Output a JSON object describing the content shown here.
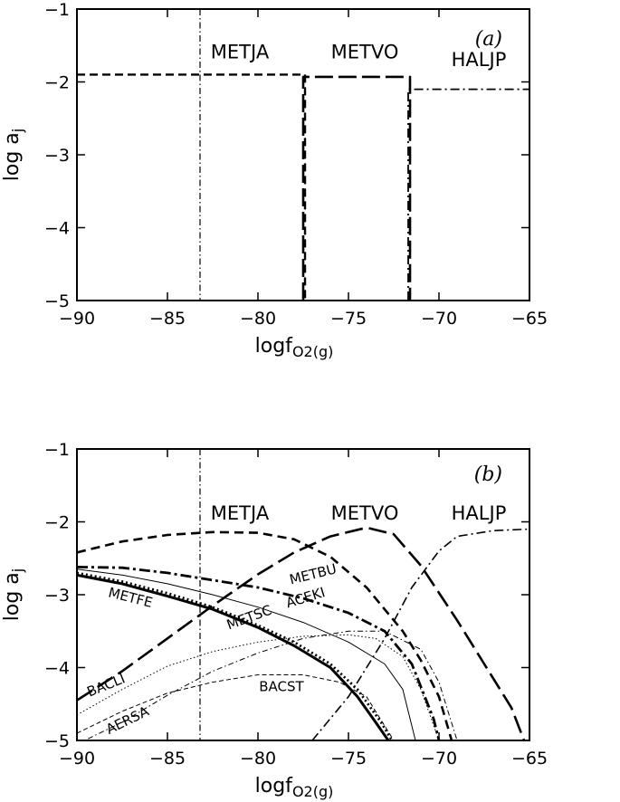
{
  "chart_data": [
    {
      "type": "line",
      "panel_label": "(a)",
      "xlabel": "logf",
      "xlabel_sub": "O2(g)",
      "ylabel": "log a",
      "ylabel_sub": "j",
      "xlim": [
        -90,
        -65
      ],
      "ylim": [
        -5,
        -1
      ],
      "xticks": [
        -90,
        -85,
        -80,
        -75,
        -70,
        -65
      ],
      "yticks": [
        -5,
        -4,
        -3,
        -2,
        -1
      ],
      "tick_labels_x": [
        "−90",
        "−85",
        "−80",
        "−75",
        "−70",
        "−65"
      ],
      "tick_labels_y": [
        "−5",
        "−4",
        "−3",
        "−2",
        "−1"
      ],
      "reference_line": {
        "x": -83.2
      },
      "series": [
        {
          "name": "METJA",
          "label_at": [
            -81,
            -1.68
          ],
          "points": [
            [
              -90,
              -1.9
            ],
            [
              -77.4,
              -1.9
            ],
            [
              -77.4,
              -5
            ]
          ]
        },
        {
          "name": "METVO",
          "label_at": [
            -74.1,
            -1.68
          ],
          "points": [
            [
              -77.5,
              -5
            ],
            [
              -77.5,
              -1.93
            ],
            [
              -71.6,
              -1.93
            ],
            [
              -71.6,
              -5
            ]
          ]
        },
        {
          "name": "HALJP",
          "label_at": [
            -67.8,
            -1.78
          ],
          "points": [
            [
              -71.7,
              -5
            ],
            [
              -71.7,
              -2.1
            ],
            [
              -65,
              -2.1
            ]
          ]
        }
      ]
    },
    {
      "type": "line",
      "panel_label": "(b)",
      "xlabel": "logf",
      "xlabel_sub": "O2(g)",
      "ylabel": "log a",
      "ylabel_sub": "j",
      "xlim": [
        -90,
        -65
      ],
      "ylim": [
        -5,
        -1
      ],
      "xticks": [
        -90,
        -85,
        -80,
        -75,
        -70,
        -65
      ],
      "yticks": [
        -5,
        -4,
        -3,
        -2,
        -1
      ],
      "tick_labels_x": [
        "−90",
        "−85",
        "−80",
        "−75",
        "−70",
        "−65"
      ],
      "tick_labels_y": [
        "−5",
        "−4",
        "−3",
        "−2",
        "−1"
      ],
      "reference_line": {
        "x": -83.2
      },
      "series": [
        {
          "name": "METJA",
          "label_at": [
            -81,
            -1.97
          ],
          "points": [
            [
              -90,
              -2.42
            ],
            [
              -87.5,
              -2.27
            ],
            [
              -85,
              -2.18
            ],
            [
              -82.5,
              -2.14
            ],
            [
              -80,
              -2.15
            ],
            [
              -78,
              -2.24
            ],
            [
              -76,
              -2.48
            ],
            [
              -74,
              -2.9
            ],
            [
              -72,
              -3.5
            ],
            [
              -71,
              -3.9
            ],
            [
              -70,
              -4.4
            ],
            [
              -69.3,
              -5
            ]
          ]
        },
        {
          "name": "METVO",
          "label_at": [
            -74.1,
            -1.97
          ],
          "points": [
            [
              -90,
              -4.45
            ],
            [
              -87.5,
              -4.05
            ],
            [
              -85,
              -3.6
            ],
            [
              -82.5,
              -3.15
            ],
            [
              -80,
              -2.72
            ],
            [
              -78,
              -2.42
            ],
            [
              -76,
              -2.2
            ],
            [
              -74,
              -2.08
            ],
            [
              -72.5,
              -2.17
            ],
            [
              -71,
              -2.6
            ],
            [
              -69,
              -3.35
            ],
            [
              -67.5,
              -3.95
            ],
            [
              -66,
              -4.55
            ],
            [
              -65.3,
              -5
            ]
          ]
        },
        {
          "name": "HALJP",
          "label_at": [
            -67.8,
            -1.97
          ],
          "points": [
            [
              -77,
              -5
            ],
            [
              -75,
              -4.4
            ],
            [
              -73,
              -3.6
            ],
            [
              -71.5,
              -2.9
            ],
            [
              -70,
              -2.4
            ],
            [
              -69,
              -2.2
            ],
            [
              -67,
              -2.12
            ],
            [
              -65,
              -2.1
            ]
          ]
        },
        {
          "name": "METBU",
          "label_at": [
            -76.9,
            -2.78
          ],
          "points": [
            [
              -90,
              -2.62
            ],
            [
              -87.5,
              -2.63
            ],
            [
              -85,
              -2.7
            ],
            [
              -82.5,
              -2.8
            ],
            [
              -80,
              -2.9
            ],
            [
              -77.5,
              -3.05
            ],
            [
              -75,
              -3.25
            ],
            [
              -73,
              -3.5
            ],
            [
              -71.5,
              -3.95
            ],
            [
              -70.3,
              -4.7
            ],
            [
              -70,
              -5
            ]
          ]
        },
        {
          "name": "ACEKI",
          "label_at": [
            -77.3,
            -3.1
          ],
          "points": [
            [
              -90,
              -2.65
            ],
            [
              -87.5,
              -2.73
            ],
            [
              -85,
              -2.85
            ],
            [
              -82.5,
              -3.0
            ],
            [
              -80,
              -3.17
            ],
            [
              -77.5,
              -3.38
            ],
            [
              -75,
              -3.65
            ],
            [
              -73,
              -3.95
            ],
            [
              -72,
              -4.3
            ],
            [
              -71.3,
              -5
            ]
          ]
        },
        {
          "name": "METSC",
          "label_at": [
            -80.4,
            -3.37
          ],
          "points": [
            [
              -90,
              -2.73
            ],
            [
              -87.5,
              -2.85
            ],
            [
              -85,
              -3.02
            ],
            [
              -82.5,
              -3.2
            ],
            [
              -80,
              -3.45
            ],
            [
              -78,
              -3.7
            ],
            [
              -76,
              -4.0
            ],
            [
              -74.5,
              -4.4
            ],
            [
              -73.5,
              -4.75
            ],
            [
              -72.8,
              -5
            ]
          ]
        },
        {
          "name": "METFE",
          "label_at": [
            -87.1,
            -3.1
          ],
          "points": [
            [
              -90,
              -2.7
            ],
            [
              -87.5,
              -2.82
            ],
            [
              -85,
              -2.98
            ],
            [
              -82.5,
              -3.17
            ],
            [
              -80,
              -3.42
            ],
            [
              -78,
              -3.65
            ],
            [
              -76,
              -3.95
            ],
            [
              -74.5,
              -4.3
            ],
            [
              -73.2,
              -4.75
            ],
            [
              -72.6,
              -5
            ]
          ]
        },
        {
          "name": "BACLI",
          "label_at": [
            -88.3,
            -4.3
          ],
          "points": [
            [
              -90,
              -4.65
            ],
            [
              -87.5,
              -4.3
            ],
            [
              -85,
              -3.98
            ],
            [
              -82.5,
              -3.78
            ],
            [
              -80,
              -3.65
            ],
            [
              -77.5,
              -3.57
            ],
            [
              -75,
              -3.55
            ],
            [
              -73.5,
              -3.6
            ],
            [
              -72,
              -3.85
            ],
            [
              -71,
              -4.3
            ],
            [
              -70,
              -5
            ]
          ]
        },
        {
          "name": "BACST",
          "label_at": [
            -78.7,
            -4.32
          ],
          "points": [
            [
              -90,
              -4.9
            ],
            [
              -87.5,
              -4.6
            ],
            [
              -85,
              -4.35
            ],
            [
              -82.5,
              -4.2
            ],
            [
              -80,
              -4.1
            ],
            [
              -77.5,
              -4.1
            ],
            [
              -75.5,
              -4.2
            ],
            [
              -74,
              -4.4
            ],
            [
              -73,
              -4.8
            ],
            [
              -72.5,
              -5
            ]
          ]
        },
        {
          "name": "AERSA",
          "label_at": [
            -87.1,
            -4.78
          ],
          "points": [
            [
              -90,
              -5.05
            ],
            [
              -87.5,
              -4.75
            ],
            [
              -85,
              -4.38
            ],
            [
              -82.5,
              -4.05
            ],
            [
              -80,
              -3.8
            ],
            [
              -77.5,
              -3.6
            ],
            [
              -75,
              -3.5
            ],
            [
              -73,
              -3.5
            ],
            [
              -71,
              -3.75
            ],
            [
              -70,
              -4.2
            ],
            [
              -69,
              -5
            ]
          ]
        }
      ]
    }
  ]
}
